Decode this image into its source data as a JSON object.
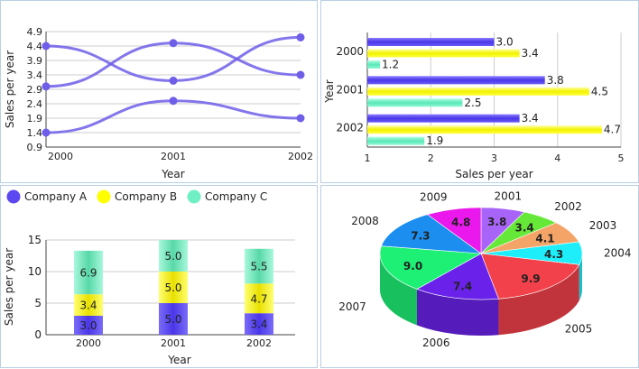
{
  "colors": {
    "a": "#5b48f0",
    "b": "#ffff00",
    "c": "#6ff0c4",
    "line": "#6f5ee8"
  },
  "chart_data": [
    {
      "type": "line",
      "x": [
        "2000",
        "2001",
        "2002"
      ],
      "series": [
        {
          "name": "Company A",
          "values": [
            3.0,
            4.5,
            3.4
          ]
        },
        {
          "name": "Company B",
          "values": [
            4.4,
            3.2,
            4.7
          ]
        },
        {
          "name": "Company C",
          "values": [
            1.4,
            2.5,
            1.9
          ]
        }
      ],
      "xlabel": "Year",
      "ylabel": "Sales per year",
      "ylim": [
        0.9,
        4.9
      ],
      "yticks": [
        "0.9",
        "1.4",
        "1.9",
        "2.4",
        "2.9",
        "3.4",
        "3.9",
        "4.4",
        "4.9"
      ],
      "grid": true
    },
    {
      "type": "bar",
      "orientation": "horizontal",
      "categories": [
        "2000",
        "2001",
        "2002"
      ],
      "series": [
        {
          "name": "Company A",
          "values": [
            3.0,
            3.8,
            3.4
          ]
        },
        {
          "name": "Company B",
          "values": [
            3.4,
            4.5,
            4.7
          ]
        },
        {
          "name": "Company C",
          "values": [
            1.2,
            2.5,
            1.9
          ]
        }
      ],
      "value_labels": [
        [
          "3.0",
          "3.4",
          "1.2"
        ],
        [
          "3.8",
          "4.5",
          "2.5"
        ],
        [
          "3.4",
          "4.7",
          "1.9"
        ]
      ],
      "xlabel": "Sales per year",
      "ylabel": "Year",
      "xlim": [
        1,
        5
      ],
      "xticks": [
        "1",
        "2",
        "3",
        "4",
        "5"
      ],
      "grid": true
    },
    {
      "type": "bar",
      "stacked": true,
      "categories": [
        "2000",
        "2001",
        "2002"
      ],
      "series": [
        {
          "name": "Company A",
          "values": [
            3.0,
            5.0,
            3.4
          ]
        },
        {
          "name": "Company B",
          "values": [
            3.4,
            5.0,
            4.7
          ]
        },
        {
          "name": "Company C",
          "values": [
            6.9,
            5.0,
            5.5
          ]
        }
      ],
      "value_labels": [
        [
          "3.0",
          "5.0",
          "3.4"
        ],
        [
          "3.4",
          "5.0",
          "4.7"
        ],
        [
          "6.9",
          "5.0",
          "5.5"
        ]
      ],
      "legend": [
        "Company A",
        "Company B",
        "Company C"
      ],
      "legend_position": "top",
      "xlabel": "Year",
      "ylabel": "Sales per year",
      "ylim": [
        0,
        15
      ],
      "yticks": [
        "0",
        "5",
        "10",
        "15"
      ],
      "grid": true
    },
    {
      "type": "pie",
      "style": "3d",
      "slices": [
        {
          "label": "2001",
          "value": 3.8,
          "text": "3.8",
          "color": "#a864f8"
        },
        {
          "label": "2002",
          "value": 3.4,
          "text": "3.4",
          "color": "#66e838"
        },
        {
          "label": "2003",
          "value": 4.1,
          "text": "4.1",
          "color": "#f5a467"
        },
        {
          "label": "2004",
          "value": 4.3,
          "text": "4.3",
          "color": "#1eeefa"
        },
        {
          "label": "2005",
          "value": 9.9,
          "text": "9.9",
          "color": "#f2414a"
        },
        {
          "label": "2006",
          "value": 7.4,
          "text": "7.4",
          "color": "#6a22ea"
        },
        {
          "label": "2007",
          "value": 9.0,
          "text": "9.0",
          "color": "#1ef075"
        },
        {
          "label": "2008",
          "value": 7.3,
          "text": "7.3",
          "color": "#1b8ef0"
        },
        {
          "label": "2009",
          "value": 4.8,
          "text": "4.8",
          "color": "#ea18ec"
        }
      ]
    }
  ]
}
